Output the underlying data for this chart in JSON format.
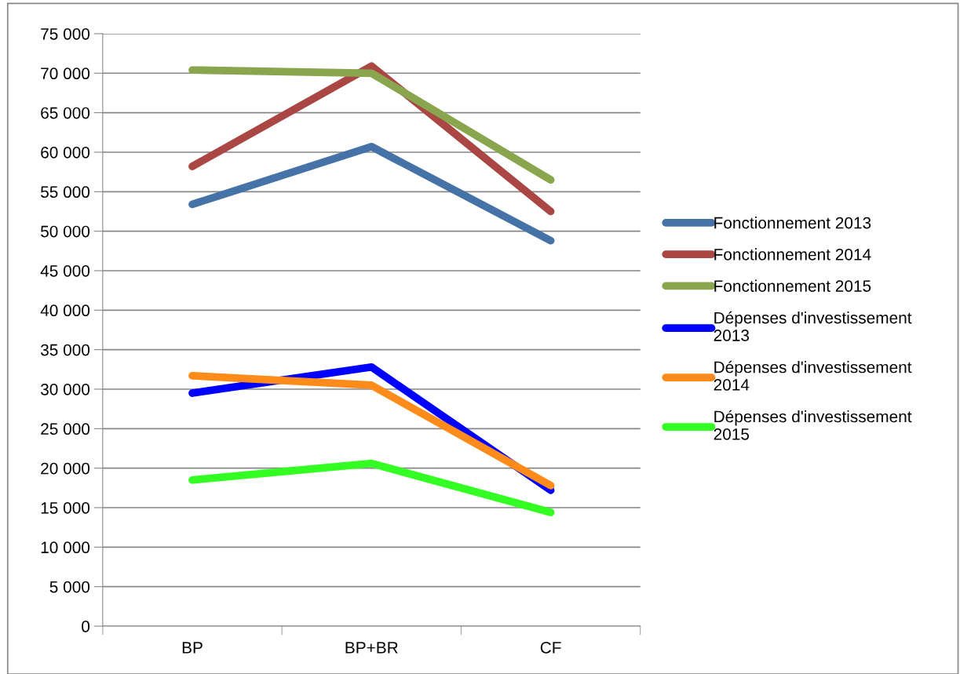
{
  "chart_data": {
    "type": "line",
    "categories": [
      "BP",
      "BP+BR",
      "CF"
    ],
    "series": [
      {
        "name": "Fonctionnement 2013",
        "color": "#4572a7",
        "values": [
          53400,
          60700,
          48800
        ]
      },
      {
        "name": "Fonctionnement 2014",
        "color": "#aa4643",
        "values": [
          58200,
          70900,
          52500
        ]
      },
      {
        "name": "Fonctionnement 2015",
        "color": "#89a54e",
        "values": [
          70400,
          70000,
          56500
        ]
      },
      {
        "name": "Dépenses d'investissement 2013",
        "color": "#0000ff",
        "values": [
          29500,
          32800,
          17200
        ]
      },
      {
        "name": "Dépenses d'investissement 2014",
        "color": "#ff8c1a",
        "values": [
          31700,
          30500,
          17800
        ]
      },
      {
        "name": "Dépenses d'investissement 2015",
        "color": "#33ff22",
        "values": [
          18500,
          20600,
          14400
        ]
      }
    ],
    "ylim": [
      0,
      75000
    ],
    "yticks": [
      {
        "value": 0,
        "label": "0"
      },
      {
        "value": 5000,
        "label": "5 000"
      },
      {
        "value": 10000,
        "label": "10 000"
      },
      {
        "value": 15000,
        "label": "15 000"
      },
      {
        "value": 20000,
        "label": "20 000"
      },
      {
        "value": 25000,
        "label": "25 000"
      },
      {
        "value": 30000,
        "label": "30 000"
      },
      {
        "value": 35000,
        "label": "35 000"
      },
      {
        "value": 40000,
        "label": "40 000"
      },
      {
        "value": 45000,
        "label": "45 000"
      },
      {
        "value": 50000,
        "label": "50 000"
      },
      {
        "value": 55000,
        "label": "55 000"
      },
      {
        "value": 60000,
        "label": "60 000"
      },
      {
        "value": 65000,
        "label": "65 000"
      },
      {
        "value": 70000,
        "label": "70 000"
      },
      {
        "value": 75000,
        "label": "75 000"
      }
    ],
    "grid": "y",
    "legend": "right",
    "marker": "none",
    "line_style": "solid"
  }
}
